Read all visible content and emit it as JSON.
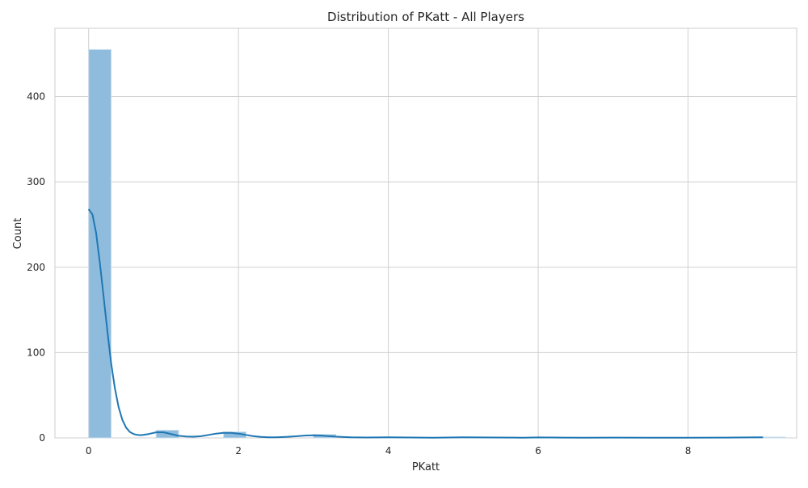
{
  "chart_data": {
    "type": "bar",
    "title": "Distribution of PKatt - All Players",
    "xlabel": "PKatt",
    "ylabel": "Count",
    "xlim": [
      -0.45,
      9.45
    ],
    "ylim": [
      0,
      480
    ],
    "xticks": [
      0,
      2,
      4,
      6,
      8
    ],
    "yticks": [
      0,
      100,
      200,
      300,
      400
    ],
    "grid": true,
    "bins": [
      {
        "x0": 0.0,
        "x1": 0.3,
        "count": 455
      },
      {
        "x0": 0.9,
        "x1": 1.2,
        "count": 9
      },
      {
        "x0": 1.8,
        "x1": 2.1,
        "count": 7
      },
      {
        "x0": 3.0,
        "x1": 3.3,
        "count": 4
      },
      {
        "x0": 3.9,
        "x1": 4.2,
        "count": 1
      },
      {
        "x0": 5.1,
        "x1": 5.4,
        "count": 1
      },
      {
        "x0": 6.0,
        "x1": 6.3,
        "count": 1
      },
      {
        "x0": 9.0,
        "x1": 9.3,
        "count": 1
      }
    ],
    "kde": {
      "x": [
        0.0,
        0.05,
        0.1,
        0.15,
        0.2,
        0.25,
        0.3,
        0.35,
        0.4,
        0.45,
        0.5,
        0.55,
        0.6,
        0.65,
        0.7,
        0.8,
        0.9,
        1.0,
        1.1,
        1.2,
        1.3,
        1.4,
        1.5,
        1.6,
        1.7,
        1.8,
        1.9,
        2.0,
        2.1,
        2.2,
        2.3,
        2.4,
        2.5,
        2.6,
        2.7,
        2.8,
        2.9,
        3.0,
        3.1,
        3.2,
        3.3,
        3.4,
        3.5,
        3.7,
        4.0,
        4.3,
        4.6,
        5.0,
        5.4,
        5.8,
        6.0,
        6.3,
        6.6,
        7.0,
        7.5,
        8.0,
        8.5,
        8.8,
        9.0
      ],
      "y": [
        268,
        262,
        240,
        205,
        165,
        125,
        88,
        58,
        36,
        21,
        12,
        7,
        4.5,
        3.5,
        3.2,
        4.5,
        6.5,
        6.5,
        4.5,
        2.5,
        1.6,
        1.4,
        2,
        3.5,
        5,
        6,
        6,
        5,
        3.5,
        2,
        1.2,
        0.8,
        0.8,
        1,
        1.5,
        2.2,
        2.8,
        3,
        2.8,
        2.2,
        1.5,
        1,
        0.7,
        0.5,
        0.8,
        0.5,
        0.3,
        0.7,
        0.5,
        0.3,
        0.6,
        0.4,
        0.3,
        0.4,
        0.3,
        0.3,
        0.4,
        0.6,
        0.8
      ]
    },
    "bar_color": "#8fbcdc",
    "bar_edge_color": "#c8dcec",
    "line_color": "#1f77b4",
    "grid_color": "#d0d0d0"
  }
}
